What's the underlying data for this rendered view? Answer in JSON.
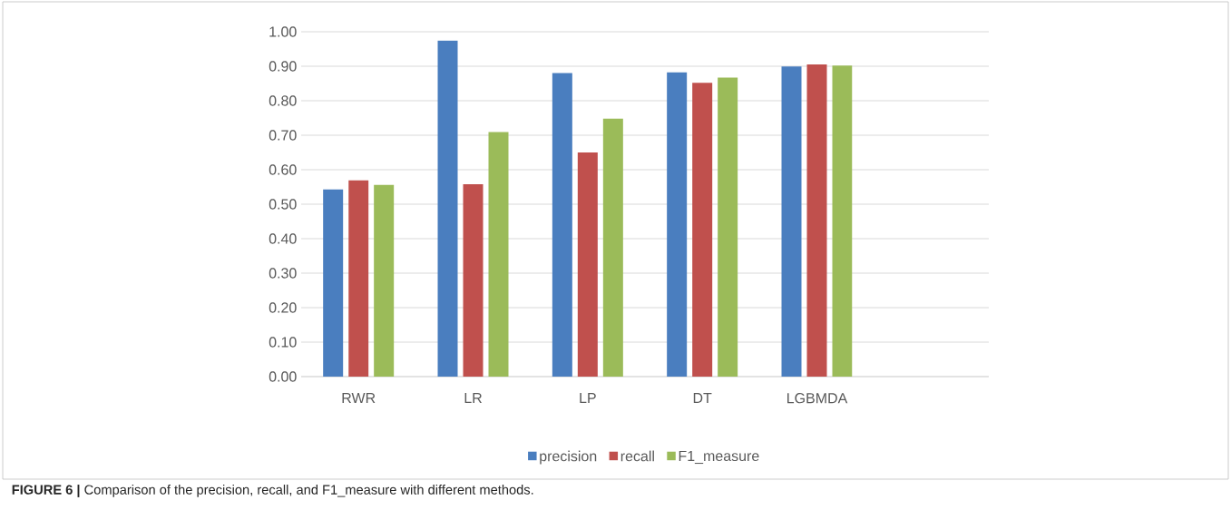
{
  "chart_data": {
    "type": "bar",
    "categories": [
      "RWR",
      "LR",
      "LP",
      "DT",
      "LGBMDA",
      null
    ],
    "series": [
      {
        "name": "precision",
        "color": "#4a7ebf",
        "values": [
          0.543,
          0.974,
          0.88,
          0.882,
          0.899,
          null
        ]
      },
      {
        "name": "recall",
        "color": "#c0504d",
        "values": [
          0.569,
          0.558,
          0.65,
          0.852,
          0.905,
          null
        ]
      },
      {
        "name": "F1_measure",
        "color": "#9bbb59",
        "values": [
          0.556,
          0.709,
          0.748,
          0.867,
          0.902,
          null
        ]
      }
    ],
    "ylim": [
      0,
      1
    ],
    "yticks": [
      {
        "value": 0,
        "label": "0.00"
      },
      {
        "value": 0.1,
        "label": "0.10"
      },
      {
        "value": 0.2,
        "label": "0.20"
      },
      {
        "value": 0.3,
        "label": "0.30"
      },
      {
        "value": 0.4,
        "label": "0.40"
      },
      {
        "value": 0.5,
        "label": "0.50"
      },
      {
        "value": 0.6,
        "label": "0.60"
      },
      {
        "value": 0.7,
        "label": "0.70"
      },
      {
        "value": 0.8,
        "label": "0.80"
      },
      {
        "value": 0.9,
        "label": "0.90"
      },
      {
        "value": 1,
        "label": "1.00"
      }
    ],
    "grid": "y",
    "legend": "bottom",
    "annotations": [
      "**FIGURE 6 |** Comparison of the precision, recall, and F1_measure with different methods."
    ]
  }
}
